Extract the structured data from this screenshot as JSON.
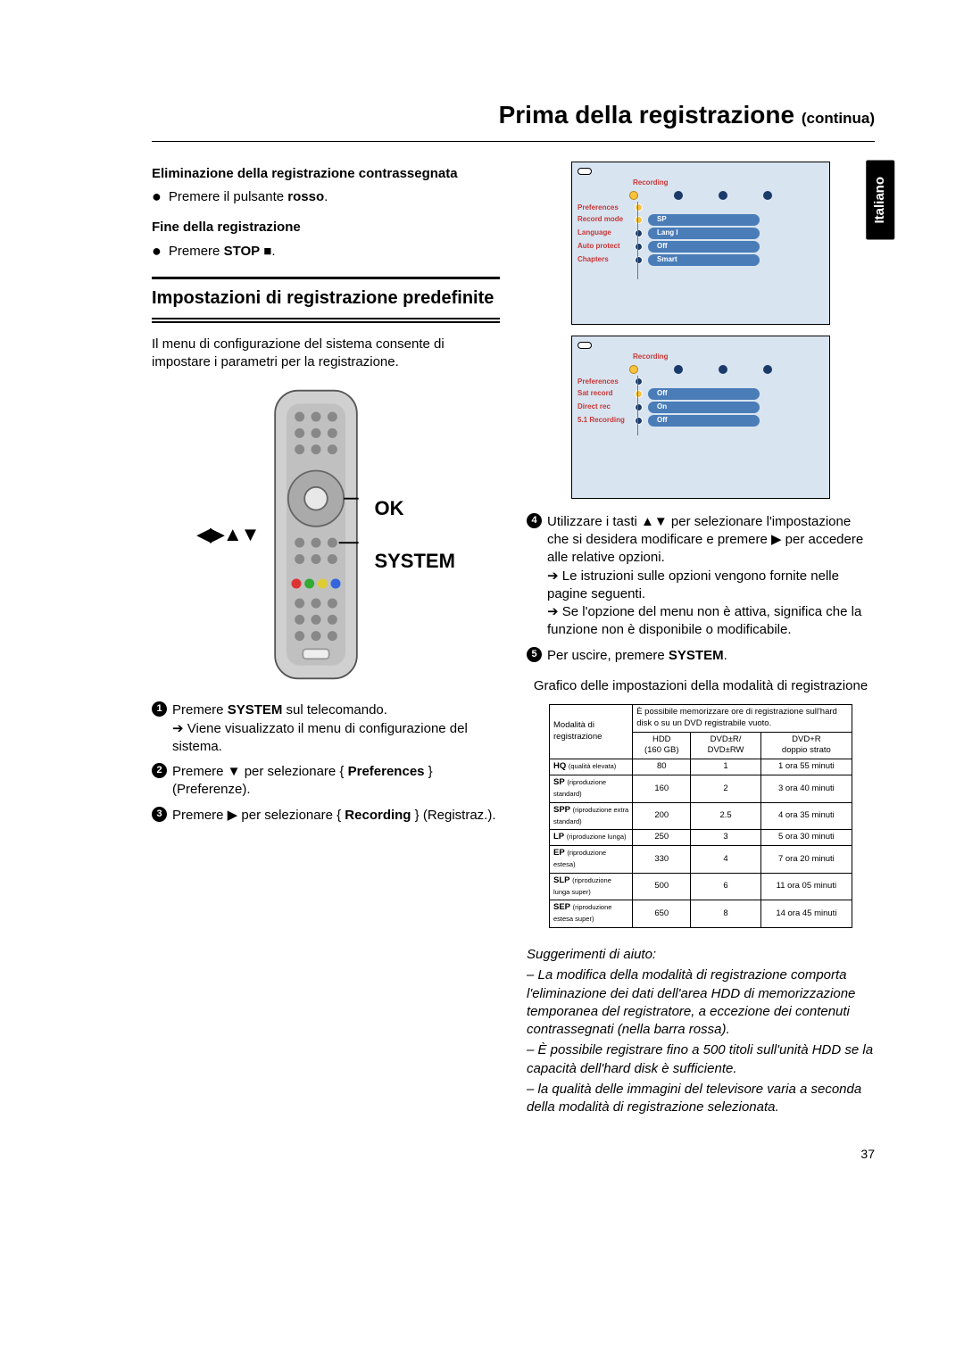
{
  "page": {
    "number": "37",
    "language_tab": "Italiano"
  },
  "title": {
    "main": "Prima della registrazione",
    "suffix": " (continua)"
  },
  "left": {
    "h1": "Eliminazione della registrazione contrassegnata",
    "b1_pre": "Premere il pulsante ",
    "b1_strong": "rosso",
    "b1_post": ".",
    "h2": "Fine della registrazione",
    "b2_pre": "Premere ",
    "b2_strong": "STOP",
    "b2_sym": " ■",
    "b2_post": ".",
    "section": "Impostazioni di registrazione predefinite",
    "intro": "Il menu di configurazione del sistema consente di impostare i parametri per la registrazione.",
    "remote": {
      "arrows": "◀▶▲▼",
      "ok": "OK",
      "system": "SYSTEM"
    },
    "step1_pre": "Premere ",
    "step1_strong": "SYSTEM",
    "step1_post": " sul telecomando.",
    "step1_sub": "Viene visualizzato il menu di configurazione del sistema.",
    "step2_pre": "Premere ▼ per selezionare { ",
    "step2_strong": "Preferences",
    "step2_post": " } (Preferenze).",
    "step3_pre": "Premere ▶ per selezionare { ",
    "step3_strong": "Recording",
    "step3_post": " } (Registraz.)."
  },
  "menu1": {
    "crumb": "Recording",
    "pref": "Preferences",
    "rows": [
      {
        "label": "Record mode",
        "value": "SP"
      },
      {
        "label": "Language",
        "value": "Lang I"
      },
      {
        "label": "Auto protect",
        "value": "Off"
      },
      {
        "label": "Chapters",
        "value": "Smart"
      }
    ]
  },
  "menu2": {
    "crumb": "Recording",
    "pref": "Preferences",
    "rows": [
      {
        "label": "Sat record",
        "value": "Off"
      },
      {
        "label": "Direct rec",
        "value": "On"
      },
      {
        "label": "5.1 Recording",
        "value": "Off"
      }
    ]
  },
  "right": {
    "step4": "Utilizzare i tasti ▲▼ per selezionare l'impostazione che si desidera modificare e premere ▶ per accedere alle relative opzioni.",
    "step4_a": "Le istruzioni sulle opzioni vengono fornite nelle pagine seguenti.",
    "step4_b": "Se l'opzione del menu non è attiva, significa che la funzione non è disponibile o modificabile.",
    "step5_pre": "Per uscire, premere ",
    "step5_strong": "SYSTEM",
    "step5_post": ".",
    "table_caption": "Grafico delle impostazioni della modalità di registrazione"
  },
  "table": {
    "head_mode": "Modalità di registrazione",
    "head_span": "È possibile memorizzare ore di registrazione sull'hard disk o su un DVD registrabile vuoto.",
    "col1": "HDD",
    "col1b": "(160 GB)",
    "col2": "DVD±R/",
    "col2b": "DVD±RW",
    "col3": "DVD+R",
    "col3b": "doppio strato",
    "rows": [
      {
        "m": "HQ",
        "d": "(qualità elevata)",
        "v1": "80",
        "v2": "1",
        "v3": "1 ora 55 minuti"
      },
      {
        "m": "SP",
        "d": "(riproduzione standard)",
        "v1": "160",
        "v2": "2",
        "v3": "3 ora 40 minuti"
      },
      {
        "m": "SPP",
        "d": "(riproduzione extra standard)",
        "v1": "200",
        "v2": "2.5",
        "v3": "4 ora 35 minuti"
      },
      {
        "m": "LP",
        "d": "(riproduzione lunga)",
        "v1": "250",
        "v2": "3",
        "v3": "5 ora 30 minuti"
      },
      {
        "m": "EP",
        "d": "(riproduzione estesa)",
        "v1": "330",
        "v2": "4",
        "v3": "7 ora 20 minuti"
      },
      {
        "m": "SLP",
        "d": "(riproduzione lunga super)",
        "v1": "500",
        "v2": "6",
        "v3": "11 ora 05 minuti"
      },
      {
        "m": "SEP",
        "d": "(riproduzione estesa super)",
        "v1": "650",
        "v2": "8",
        "v3": "14 ora 45 minuti"
      }
    ]
  },
  "hints": {
    "title": "Suggerimenti di aiuto:",
    "h1": "– La modifica della modalità di registrazione comporta l'eliminazione dei dati dell'area HDD di memorizzazione temporanea del registratore, a eccezione dei contenuti contrassegnati (nella barra rossa).",
    "h2": "– È possibile registrare fino a 500 titoli sull'unità HDD se la capacità dell'hard disk è sufficiente.",
    "h3": "– la qualità delle immagini del televisore varia a seconda della modalità di registrazione selezionata."
  }
}
